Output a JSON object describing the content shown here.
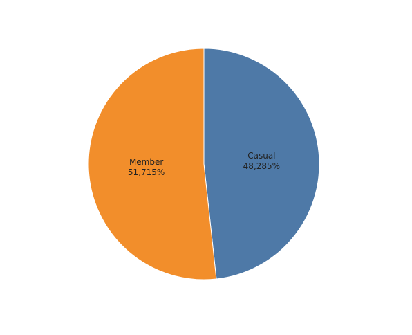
{
  "chart_data": {
    "type": "pie",
    "categories": [
      "Casual",
      "Member"
    ],
    "values": [
      48.285,
      51.715
    ],
    "value_labels": [
      "48,285%",
      "51,715%"
    ],
    "colors": [
      "#4e79a7",
      "#f28e2b"
    ]
  }
}
